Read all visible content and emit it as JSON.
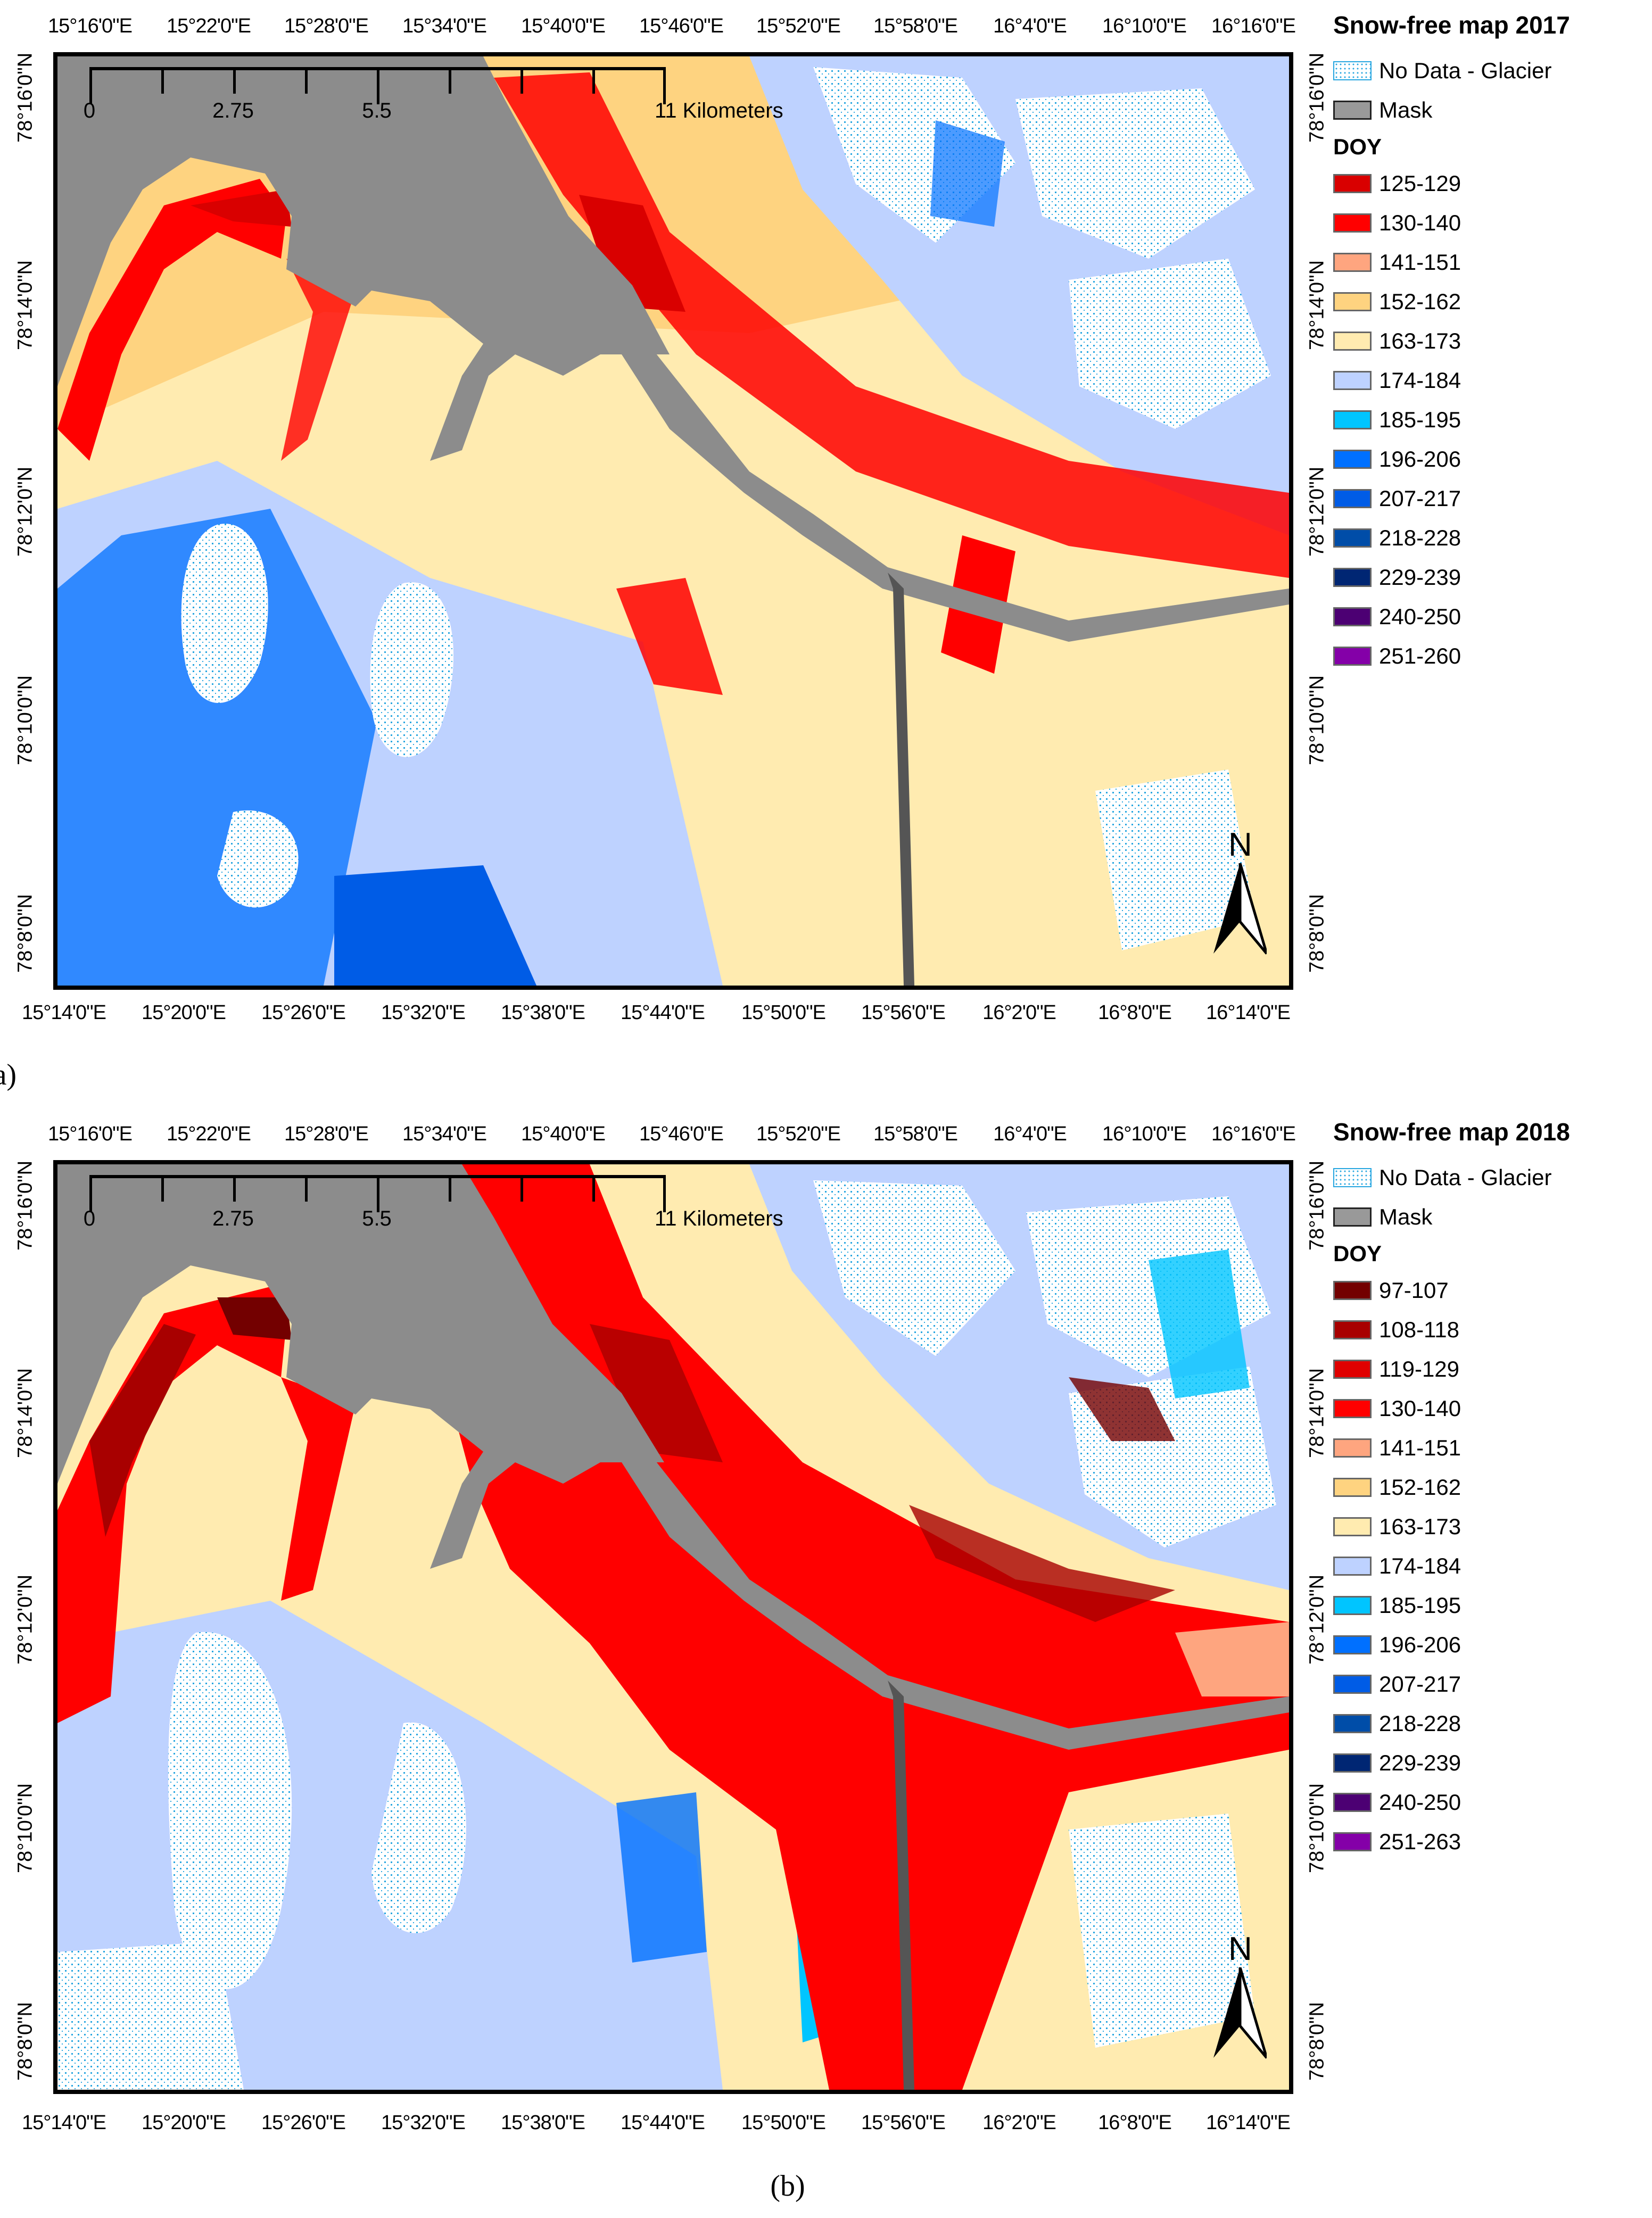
{
  "figure": {
    "panels": [
      {
        "id": "a",
        "caption": "(a)",
        "legend": {
          "title": "Snow-free map 2017",
          "static_items": [
            {
              "label": "No Data - Glacier",
              "type": "glacier"
            },
            {
              "label": "Mask",
              "type": "mask",
              "color": "#999999"
            }
          ],
          "doy_heading": "DOY",
          "classes": [
            {
              "label": "125-129",
              "color": "#d90000"
            },
            {
              "label": "130-140",
              "color": "#ff0000"
            },
            {
              "label": "141-151",
              "color": "#fea57f"
            },
            {
              "label": "152-162",
              "color": "#fed380"
            },
            {
              "label": "163-173",
              "color": "#ffebb0"
            },
            {
              "label": "174-184",
              "color": "#bed2ff"
            },
            {
              "label": "185-195",
              "color": "#00c5ff"
            },
            {
              "label": "196-206",
              "color": "#0070ff"
            },
            {
              "label": "207-217",
              "color": "#005ce6"
            },
            {
              "label": "218-228",
              "color": "#004da8"
            },
            {
              "label": "229-239",
              "color": "#002673"
            },
            {
              "label": "240-250",
              "color": "#4c0073"
            },
            {
              "label": "251-260",
              "color": "#8400a8"
            }
          ]
        }
      },
      {
        "id": "b",
        "caption": "(b)",
        "legend": {
          "title": "Snow-free map 2018",
          "static_items": [
            {
              "label": "No Data - Glacier",
              "type": "glacier"
            },
            {
              "label": "Mask",
              "type": "mask",
              "color": "#999999"
            }
          ],
          "doy_heading": "DOY",
          "classes": [
            {
              "label": "97-107",
              "color": "#730000"
            },
            {
              "label": "108-118",
              "color": "#a80000"
            },
            {
              "label": "119-129",
              "color": "#e00000"
            },
            {
              "label": "130-140",
              "color": "#ff0000"
            },
            {
              "label": "141-151",
              "color": "#fea57f"
            },
            {
              "label": "152-162",
              "color": "#fed380"
            },
            {
              "label": "163-173",
              "color": "#ffebb0"
            },
            {
              "label": "174-184",
              "color": "#bed2ff"
            },
            {
              "label": "185-195",
              "color": "#00c5ff"
            },
            {
              "label": "196-206",
              "color": "#0070ff"
            },
            {
              "label": "207-217",
              "color": "#005ce6"
            },
            {
              "label": "218-228",
              "color": "#004da8"
            },
            {
              "label": "229-239",
              "color": "#002673"
            },
            {
              "label": "240-250",
              "color": "#4c0073"
            },
            {
              "label": "251-263",
              "color": "#8400a8"
            }
          ]
        }
      }
    ],
    "axes": {
      "top_lon_labels": [
        "15°16'0\"E",
        "15°22'0\"E",
        "15°28'0\"E",
        "15°34'0\"E",
        "15°40'0\"E",
        "15°46'0\"E",
        "15°52'0\"E",
        "15°58'0\"E",
        "16°4'0\"E",
        "16°10'0\"E",
        "16°16'0\"E"
      ],
      "bottom_lon_labels": [
        "15°14'0\"E",
        "15°20'0\"E",
        "15°26'0\"E",
        "15°32'0\"E",
        "15°38'0\"E",
        "15°44'0\"E",
        "15°50'0\"E",
        "15°56'0\"E",
        "16°2'0\"E",
        "16°8'0\"E",
        "16°14'0\"E"
      ],
      "left_lat_labels": [
        "78°16'0\"N",
        "78°14'0\"N",
        "78°12'0\"N",
        "78°10'0\"N",
        "78°8'0\"N"
      ],
      "right_lat_labels": [
        "78°16'0\"N",
        "78°14'0\"N",
        "78°12'0\"N",
        "78°10'0\"N",
        "78°8'0\"N"
      ]
    },
    "scalebar": {
      "labels": [
        "0",
        "2.75",
        "5.5",
        "11 Kilometers"
      ],
      "values_km": [
        0,
        2.75,
        5.5,
        11
      ]
    },
    "north_arrow": {
      "label": "N"
    }
  }
}
